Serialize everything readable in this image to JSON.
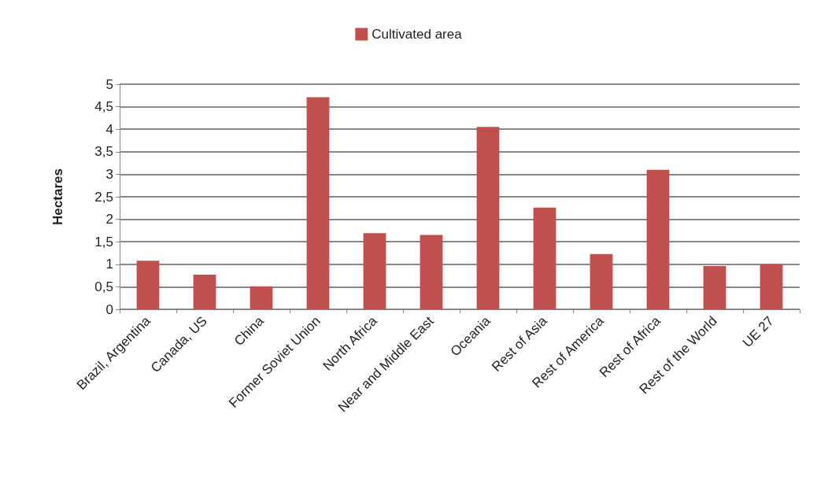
{
  "chart_data": {
    "type": "bar",
    "ylabel": "Hectares",
    "categories": [
      "Brazil, Argentina",
      "Canada, US",
      "China",
      "Former Soviet Union",
      "North Africa",
      "Near and Middle East",
      "Oceania",
      "Rest of Asia",
      "Rest of America",
      "Rest of Africa",
      "Rest of the World",
      "UE 27"
    ],
    "series": [
      {
        "name": "Cultivated area",
        "color": "#c0504d",
        "values": [
          1.08,
          0.77,
          0.51,
          4.71,
          1.69,
          1.65,
          4.05,
          2.26,
          1.23,
          3.1,
          0.96,
          1.0
        ]
      }
    ],
    "ylim": [
      0,
      5
    ],
    "yticks": [
      0,
      {
        "value": 0.5,
        "label": "0,5"
      },
      1,
      {
        "value": 1.5,
        "label": "1,5"
      },
      2,
      {
        "value": 2.5,
        "label": "2,5"
      },
      3,
      {
        "value": 3.5,
        "label": "3,5"
      },
      4,
      {
        "value": 4.5,
        "label": "4,5"
      },
      5
    ],
    "grid": "y",
    "legend": "top"
  }
}
